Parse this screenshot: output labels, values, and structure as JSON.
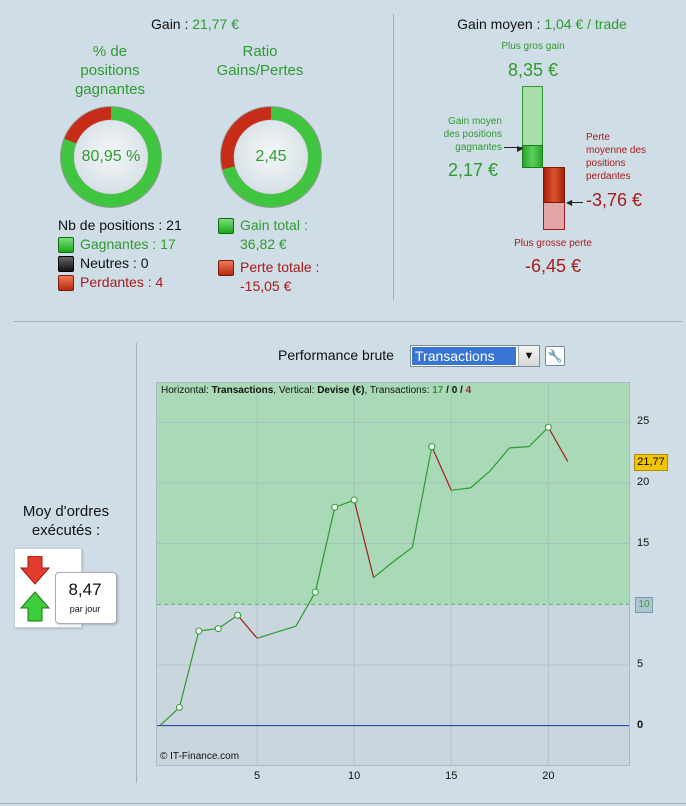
{
  "summary": {
    "gain_label": "Gain : ",
    "gain_value": "21,77 €",
    "pct_title_line1": "% de",
    "pct_title_line2": "positions",
    "pct_title_line3": "gagnantes",
    "pct_value": "80,95 %",
    "pct_fraction": 0.8095,
    "ratio_title_line1": "Ratio",
    "ratio_title_line2": "Gains/Pertes",
    "ratio_value": "2,45",
    "ratio_fraction": 0.71,
    "nb_positions": "Nb de positions : 21",
    "gagnantes": "Gagnantes : 17",
    "neutres": "Neutres : 0",
    "perdantes": "Perdantes : 4",
    "gain_total_label": "Gain total :",
    "gain_total_value": "36,82 €",
    "perte_totale_label": "Perte totale :",
    "perte_totale_value": "-15,05 €"
  },
  "gain_moyen": {
    "title_label": "Gain moyen : ",
    "title_value": "1,04 € / trade",
    "plus_gros_gain_label": "Plus gros gain",
    "plus_gros_gain_value": "8,35 €",
    "avg_win_line1": "Gain moyen",
    "avg_win_line2": "des positions",
    "avg_win_line3": "gagnantes",
    "avg_win_value": "2,17 €",
    "avg_loss_line1": "Perte",
    "avg_loss_line2": "moyenne des",
    "avg_loss_line3": "positions",
    "avg_loss_line4": "perdantes",
    "avg_loss_value": "-3,76 €",
    "plus_grosse_perte_label": "Plus grosse perte",
    "plus_grosse_perte_value": "-6,45 €"
  },
  "orders": {
    "title_line1": "Moy d'ordres",
    "title_line2": "exécutés :",
    "value": "8,47",
    "unit": "par jour"
  },
  "performance": {
    "label": "Performance brute",
    "select_value": "Transactions"
  },
  "chart_info": {
    "prefix": "Horizontal: ",
    "horizontal": "Transactions",
    "mid": ", Vertical: ",
    "vertical": "Devise (€)",
    "suffix": ", Transactions: ",
    "wins": "17",
    "slash1": " / ",
    "neutral": "0",
    "slash2": " / ",
    "losses": "4",
    "copyright": "© IT-Finance.com",
    "current_label": "21,77",
    "ten_label": "10"
  },
  "colors": {
    "green": "#2f9a2f",
    "red": "#a61b1b",
    "win_line": "#2f9a2f",
    "loss_line": "#a61b1b"
  },
  "chart_data": {
    "type": "line",
    "x": [
      0,
      1,
      2,
      3,
      4,
      5,
      6,
      7,
      8,
      9,
      10,
      11,
      12,
      13,
      14,
      15,
      16,
      17,
      18,
      19,
      20,
      21
    ],
    "y": [
      0,
      1.5,
      7.8,
      8.0,
      9.1,
      7.2,
      7.7,
      8.2,
      11.0,
      18.0,
      18.6,
      12.2,
      13.5,
      14.7,
      23.0,
      19.4,
      19.6,
      21.0,
      22.9,
      23.0,
      24.6,
      21.77
    ],
    "outcome": [
      "",
      "win",
      "win",
      "win",
      "win",
      "loss",
      "win",
      "win",
      "win",
      "win",
      "win",
      "loss",
      "win",
      "win",
      "win",
      "loss",
      "win",
      "win",
      "win",
      "win",
      "win",
      "loss"
    ],
    "marked_points": [
      1,
      2,
      3,
      4,
      8,
      9,
      10,
      14,
      20
    ],
    "xlim": [
      0,
      24
    ],
    "ylim": [
      -3,
      28
    ],
    "xticks": [
      5,
      10,
      15,
      20
    ],
    "yticks": [
      0,
      5,
      15,
      20,
      25
    ],
    "reference_line": 10,
    "current_value": 21.77
  }
}
